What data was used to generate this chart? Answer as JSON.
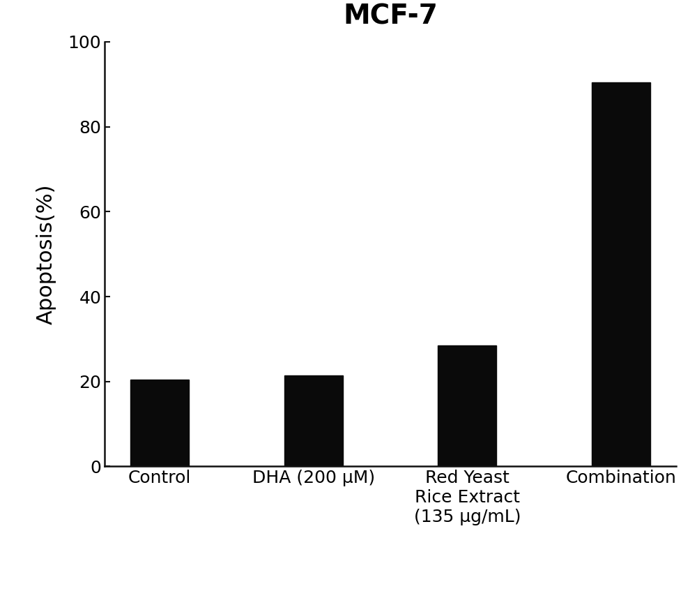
{
  "title": "MCF-7",
  "ylabel": "Apoptosis(%)",
  "categories": [
    "Control",
    "DHA (200 μM)",
    "Red Yeast\nRice Extract\n(135 μg/mL)",
    "Combination"
  ],
  "values": [
    20.5,
    21.5,
    28.5,
    90.5
  ],
  "bar_color": "#0a0a0a",
  "ylim": [
    0,
    100
  ],
  "yticks": [
    0,
    20,
    40,
    60,
    80,
    100
  ],
  "background_color": "#ffffff",
  "title_fontsize": 28,
  "title_fontweight": "bold",
  "ylabel_fontsize": 22,
  "tick_fontsize": 18,
  "xtick_fontsize": 18,
  "bar_width": 0.38
}
